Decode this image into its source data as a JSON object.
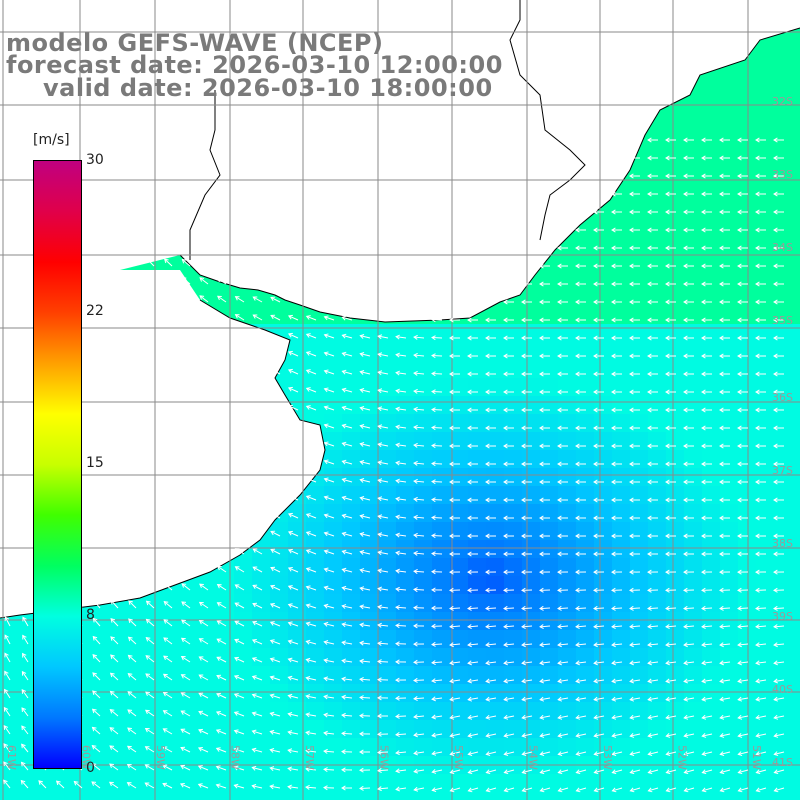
{
  "title": {
    "line1": "modelo GEFS-WAVE (NCEP)",
    "line2": "forecast date: 2026-03-10 12:00:00",
    "line3": "valid date: 2026-03-10 18:00:00"
  },
  "colorbar": {
    "unit": "[m/s]",
    "ticks": [
      "30",
      "22",
      "15",
      "8",
      "0"
    ],
    "range": [
      0,
      30
    ],
    "colors": [
      "#0000ff",
      "#0078ff",
      "#00c8ff",
      "#00ffe0",
      "#00ff60",
      "#40ff00",
      "#c8ff00",
      "#ffff00",
      "#ffa000",
      "#ff4000",
      "#ff0000",
      "#e0004a",
      "#c00080"
    ]
  },
  "lat_labels": [
    "32S",
    "33S",
    "34S",
    "35S",
    "36S",
    "37S",
    "38S",
    "39S",
    "40S",
    "41S"
  ],
  "lon_labels": [
    "61W",
    "60W",
    "59W",
    "58W",
    "57W",
    "56W",
    "55W",
    "54W",
    "53W",
    "52W",
    "51W"
  ],
  "colors": {
    "land": "#ffffff",
    "coast": "#000000",
    "grid": "#8a8a8a",
    "arrow": "#ffffff",
    "title": "#7a7a7a"
  }
}
